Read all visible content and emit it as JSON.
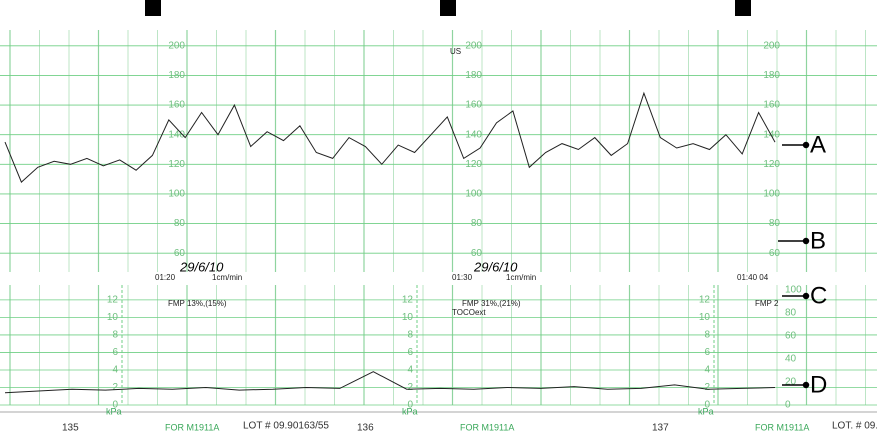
{
  "chart_data": [
    {
      "type": "line",
      "categories": [
        null,
        null,
        null,
        null,
        null,
        null,
        null,
        null,
        null,
        null,
        null,
        null,
        null,
        null,
        null,
        null,
        null,
        null,
        null,
        null,
        null,
        null,
        null,
        null,
        null,
        null,
        null,
        null,
        null,
        null,
        null,
        null,
        null,
        null,
        null,
        null,
        null,
        null,
        null,
        null,
        null,
        null,
        null,
        null,
        null,
        null,
        null,
        null
      ],
      "series": [
        {
          "name": "US",
          "color": "#222222",
          "values": [
            135,
            108,
            118,
            122,
            120,
            124,
            119,
            123,
            116,
            126,
            150,
            138,
            155,
            140,
            160,
            132,
            142,
            136,
            146,
            128,
            124,
            138,
            132,
            120,
            133,
            128,
            140,
            152,
            124,
            131,
            148,
            156,
            118,
            128,
            134,
            130,
            138,
            126,
            134,
            168,
            138,
            131,
            134,
            130,
            140,
            127,
            155,
            135
          ]
        }
      ],
      "ylim": [
        50,
        210
      ],
      "yticks": [
        60,
        80,
        100,
        120,
        140,
        160,
        180,
        200
      ],
      "grid": true
    },
    {
      "type": "line",
      "categories": [
        null,
        null,
        null,
        null,
        null,
        null,
        null,
        null,
        null,
        null,
        null,
        null,
        null,
        null,
        null,
        null,
        null,
        null,
        null,
        null,
        null,
        null,
        null,
        null
      ],
      "series": [
        {
          "name": "TOCOext",
          "color": "#222222",
          "values": [
            1.4,
            1.6,
            1.8,
            1.7,
            1.9,
            1.8,
            2,
            1.7,
            1.8,
            2,
            1.9,
            3.8,
            1.8,
            1.9,
            1.8,
            2,
            1.9,
            2.1,
            1.8,
            1.9,
            2.3,
            1.8,
            1.9,
            2
          ]
        }
      ],
      "ylim": [
        0,
        13.7
      ],
      "yticks": [
        0,
        2,
        4,
        6,
        8,
        10,
        12
      ],
      "y2lim": [
        0,
        104
      ],
      "y2ticks": [
        0,
        20,
        40,
        60,
        80,
        100
      ],
      "unit": "kPa",
      "grid": true
    }
  ],
  "markers": [
    "A",
    "B",
    "C",
    "D"
  ],
  "events": [
    {
      "time": "01:20",
      "date": "29/6/10",
      "speed": "1cm/min",
      "fmp": "FMP 13%,(15%)"
    },
    {
      "time": "01:30",
      "date": "29/6/10",
      "speed": "1cm/min",
      "fmp": "FMP 31%,(21%)"
    },
    {
      "time": "01:40 04",
      "fmp": "FMP 2"
    }
  ],
  "footer": {
    "pages": [
      "135",
      "136",
      "137"
    ],
    "form": "FOR M1911A",
    "lots": [
      "LOT # 09.90163/55",
      "LOT. # 09."
    ]
  }
}
